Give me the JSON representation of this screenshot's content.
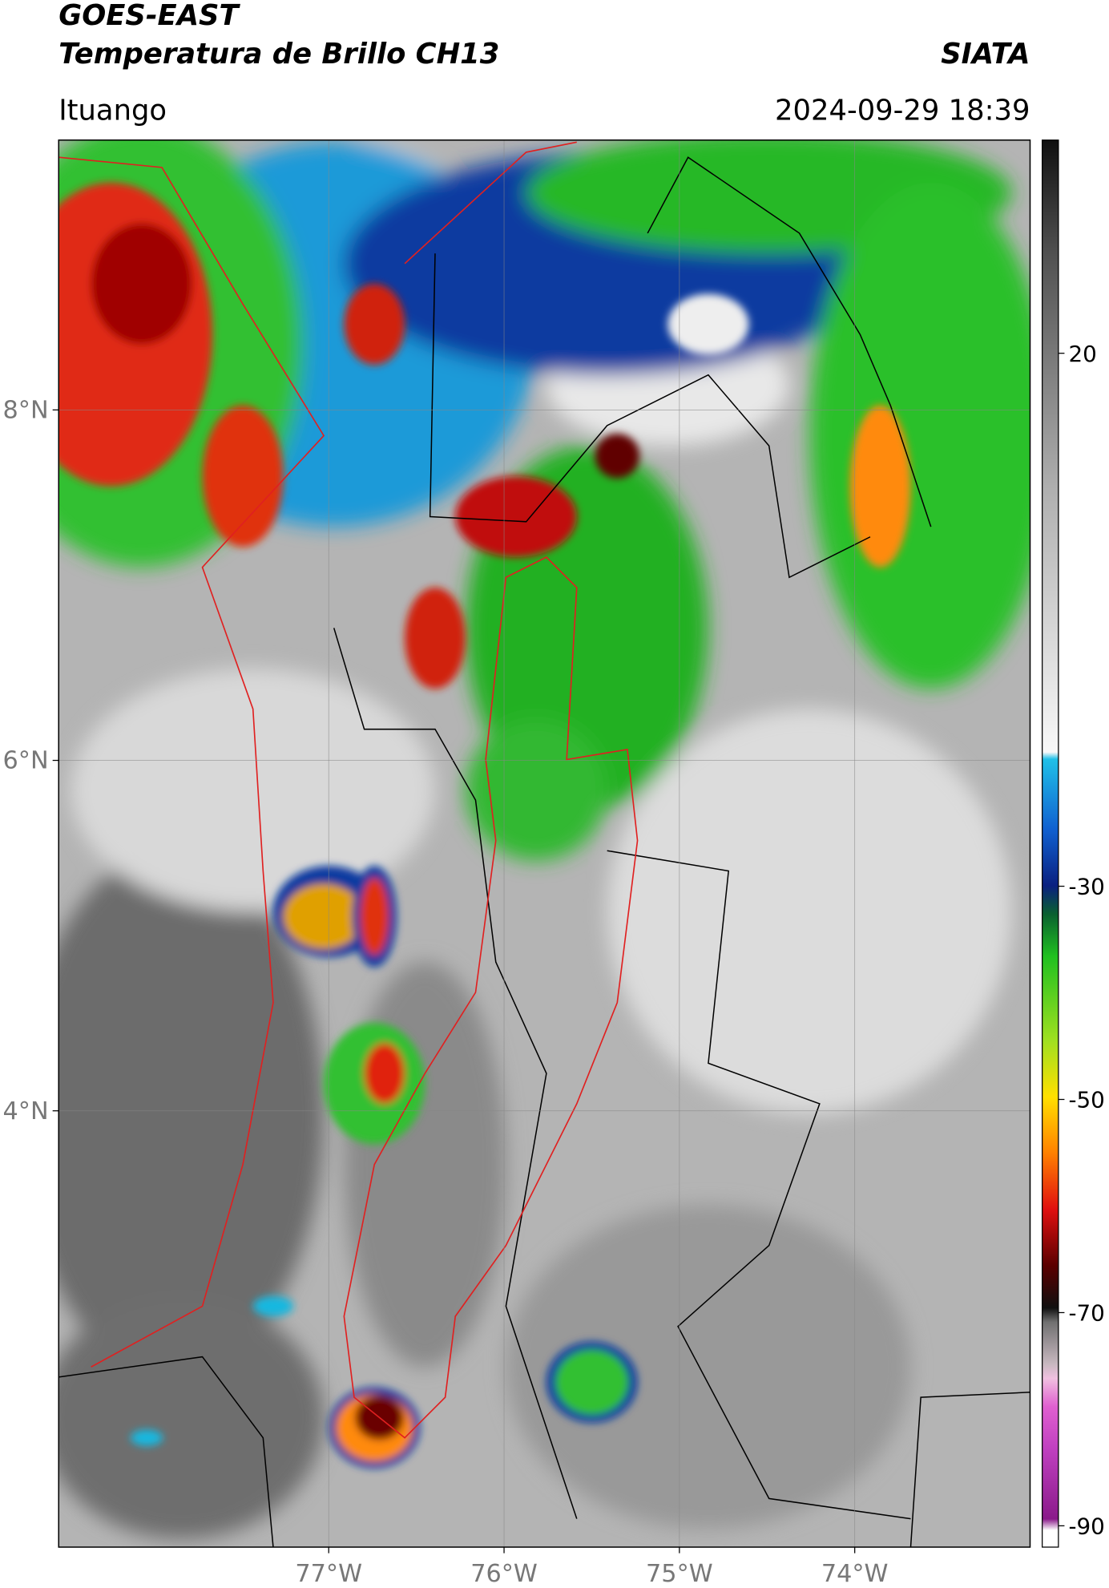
{
  "header": {
    "title": "GOES-EAST",
    "subtitle": "Temperatura de Brillo CH13",
    "org": "SIATA",
    "location": "Ituango",
    "datetime": "2024-09-29 18:39"
  },
  "map": {
    "lonlim": [
      -78.54,
      -73.0
    ],
    "latlim": [
      1.51,
      9.54
    ],
    "lonticks": [
      {
        "value": -77,
        "label": "77°W"
      },
      {
        "value": -76,
        "label": "76°W"
      },
      {
        "value": -75,
        "label": "75°W"
      },
      {
        "value": -74,
        "label": "74°W"
      }
    ],
    "latticks": [
      {
        "value": 8,
        "label": "8°N"
      },
      {
        "value": 6,
        "label": "6°N"
      },
      {
        "value": 4,
        "label": "4°N"
      }
    ]
  },
  "colorbar": {
    "lim": [
      -92,
      40
    ],
    "ticks": [
      20,
      -30,
      -50,
      -70,
      -90
    ]
  }
}
